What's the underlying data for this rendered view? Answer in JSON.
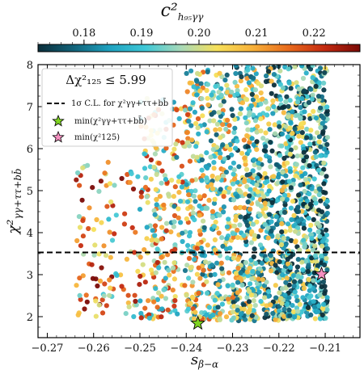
{
  "chart_data": {
    "type": "scatter",
    "title": "",
    "xlabel": "s",
    "xlabel_sub": "β−α",
    "ylabel": "χ²",
    "ylabel_sub": "γγ+ττ+bb̄",
    "xlim": [
      -0.272,
      -0.2025
    ],
    "ylim": [
      1.5,
      8.0
    ],
    "xticks": [
      -0.27,
      -0.26,
      -0.25,
      -0.24,
      -0.23,
      -0.22,
      -0.21
    ],
    "xtick_labels": [
      "−0.27",
      "−0.26",
      "−0.25",
      "−0.24",
      "−0.23",
      "−0.22",
      "−0.21"
    ],
    "yticks": [
      2,
      3,
      4,
      5,
      6,
      7,
      8
    ],
    "ytick_labels": [
      "2",
      "3",
      "4",
      "5",
      "6",
      "7",
      "8"
    ],
    "colorbar": {
      "label": "c²",
      "label_sub": "h₉₅γγ",
      "range": [
        0.172,
        0.228
      ],
      "ticks": [
        0.18,
        0.19,
        0.2,
        0.21,
        0.22
      ],
      "tick_labels": [
        "0.18",
        "0.19",
        "0.20",
        "0.21",
        "0.22"
      ],
      "colors": [
        "#0b2e3a",
        "#12637a",
        "#1fa2c0",
        "#3ec7d6",
        "#a8d9b8",
        "#f6e05a",
        "#f7b13a",
        "#e86a1c",
        "#c42a10",
        "#7a0a06"
      ]
    },
    "legend": {
      "placement": "upper-left",
      "title": "Δχ²₁₂₅ ≤ 5.99",
      "entries": [
        {
          "label": "1σ C.L. for χ²γγ+ττ+bb̄",
          "marker": "dashed-line"
        },
        {
          "label": "min(χ²γγ+ττ+bb̄)",
          "marker": "star",
          "color": "#7ed321"
        },
        {
          "label": "min(χ²125)",
          "marker": "star",
          "color": "#f58fc0"
        }
      ]
    },
    "reference_line": {
      "y": 3.53,
      "style": "dashed",
      "label": "1σ C.L."
    },
    "special_points": [
      {
        "name": "min(χ²γγ+ττ+bb̄)",
        "x": -0.2375,
        "y": 1.84,
        "color": "#7ed321"
      },
      {
        "name": "min(χ²125)",
        "x": -0.2108,
        "y": 3.01,
        "color": "#f58fc0"
      }
    ],
    "scatter_density": [
      {
        "x_range": [
          -0.264,
          -0.25
        ],
        "y_range": [
          2.0,
          5.7
        ],
        "count": 110
      },
      {
        "x_range": [
          -0.25,
          -0.24
        ],
        "y_range": [
          1.95,
          7.2
        ],
        "count": 240
      },
      {
        "x_range": [
          -0.24,
          -0.23
        ],
        "y_range": [
          1.9,
          7.9
        ],
        "count": 430
      },
      {
        "x_range": [
          -0.23,
          -0.22
        ],
        "y_range": [
          1.9,
          8.0
        ],
        "count": 580
      },
      {
        "x_range": [
          -0.22,
          -0.2095
        ],
        "y_range": [
          1.95,
          8.0
        ],
        "count": 760
      }
    ],
    "grid": false
  }
}
